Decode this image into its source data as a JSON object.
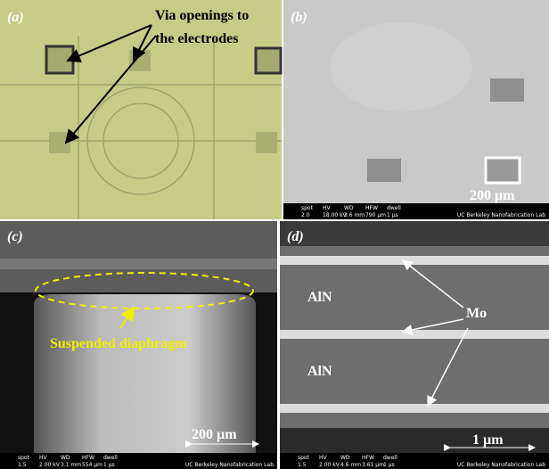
{
  "panels": {
    "a": {
      "label": "(a)",
      "annotation": [
        "Via openings to",
        "the electrodes"
      ]
    },
    "b": {
      "label": "(b)",
      "scale_bar": "200 µm",
      "info_values": [
        "2.0",
        "18.00 kV",
        "3.6 mm",
        "790 µm",
        "1 µs"
      ]
    },
    "c": {
      "label": "(c)",
      "annotation": "Suspended diaphragm",
      "scale_bar": "200 µm",
      "info_values": [
        "1.5",
        "2.00 kV",
        "3.1 mm",
        "554 µm",
        "1 µs"
      ]
    },
    "d": {
      "label": "(d)",
      "layers": [
        "AlN",
        "AlN"
      ],
      "electrode": "Mo",
      "scale_bar": "1 µm",
      "info_values": [
        "1.5",
        "2.00 kV",
        "4.6 mm",
        "3.61 µm",
        "1 µs"
      ]
    }
  },
  "info_headers": [
    "spot",
    "HV",
    "WD",
    "HFW",
    "dwell"
  ],
  "lab": "UC Berkeley Nanofabrication Lab"
}
